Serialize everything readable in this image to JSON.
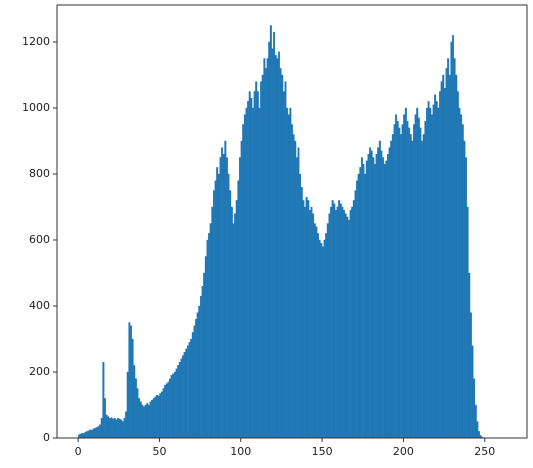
{
  "chart_data": {
    "type": "histogram",
    "color": "#1f77b4",
    "bins": [
      0,
      1,
      2,
      3,
      4,
      5,
      6,
      7,
      8,
      9,
      10,
      11,
      12,
      13,
      14,
      15,
      16,
      17,
      18,
      19,
      20,
      21,
      22,
      23,
      24,
      25,
      26,
      27,
      28,
      29,
      30,
      31,
      32,
      33,
      34,
      35,
      36,
      37,
      38,
      39,
      40,
      41,
      42,
      43,
      44,
      45,
      46,
      47,
      48,
      49,
      50,
      51,
      52,
      53,
      54,
      55,
      56,
      57,
      58,
      59,
      60,
      61,
      62,
      63,
      64,
      65,
      66,
      67,
      68,
      69,
      70,
      71,
      72,
      73,
      74,
      75,
      76,
      77,
      78,
      79,
      80,
      81,
      82,
      83,
      84,
      85,
      86,
      87,
      88,
      89,
      90,
      91,
      92,
      93,
      94,
      95,
      96,
      97,
      98,
      99,
      100,
      101,
      102,
      103,
      104,
      105,
      106,
      107,
      108,
      109,
      110,
      111,
      112,
      113,
      114,
      115,
      116,
      117,
      118,
      119,
      120,
      121,
      122,
      123,
      124,
      125,
      126,
      127,
      128,
      129,
      130,
      131,
      132,
      133,
      134,
      135,
      136,
      137,
      138,
      139,
      140,
      141,
      142,
      143,
      144,
      145,
      146,
      147,
      148,
      149,
      150,
      151,
      152,
      153,
      154,
      155,
      156,
      157,
      158,
      159,
      160,
      161,
      162,
      163,
      164,
      165,
      166,
      167,
      168,
      169,
      170,
      171,
      172,
      173,
      174,
      175,
      176,
      177,
      178,
      179,
      180,
      181,
      182,
      183,
      184,
      185,
      186,
      187,
      188,
      189,
      190,
      191,
      192,
      193,
      194,
      195,
      196,
      197,
      198,
      199,
      200,
      201,
      202,
      203,
      204,
      205,
      206,
      207,
      208,
      209,
      210,
      211,
      212,
      213,
      214,
      215,
      216,
      217,
      218,
      219,
      220,
      221,
      222,
      223,
      224,
      225,
      226,
      227,
      228,
      229,
      230,
      231,
      232,
      233,
      234,
      235,
      236,
      237,
      238,
      239,
      240,
      241,
      242,
      243,
      244,
      245,
      246,
      247,
      248,
      249,
      250,
      251,
      252,
      253,
      254,
      255,
      256
    ],
    "values": [
      10,
      12,
      15,
      14,
      18,
      20,
      22,
      25,
      24,
      28,
      30,
      32,
      35,
      40,
      60,
      230,
      120,
      70,
      65,
      60,
      62,
      58,
      60,
      55,
      60,
      58,
      55,
      50,
      60,
      80,
      200,
      350,
      340,
      300,
      220,
      180,
      150,
      120,
      110,
      100,
      95,
      100,
      105,
      100,
      110,
      115,
      120,
      125,
      130,
      128,
      135,
      140,
      150,
      160,
      165,
      170,
      180,
      190,
      195,
      200,
      210,
      220,
      230,
      240,
      250,
      260,
      270,
      280,
      290,
      300,
      320,
      340,
      360,
      380,
      400,
      430,
      460,
      500,
      550,
      600,
      620,
      650,
      700,
      750,
      780,
      820,
      800,
      850,
      880,
      860,
      900,
      850,
      800,
      750,
      700,
      650,
      680,
      720,
      780,
      850,
      900,
      950,
      980,
      1000,
      1020,
      1050,
      1030,
      1000,
      1050,
      1080,
      1050,
      1000,
      1080,
      1100,
      1150,
      1120,
      1150,
      1200,
      1250,
      1180,
      1230,
      1160,
      1150,
      1170,
      1120,
      1100,
      1050,
      1080,
      1000,
      980,
      1000,
      950,
      920,
      900,
      850,
      880,
      800,
      760,
      720,
      700,
      730,
      720,
      690,
      700,
      680,
      650,
      640,
      620,
      600,
      590,
      580,
      600,
      620,
      650,
      680,
      700,
      720,
      710,
      690,
      700,
      720,
      710,
      700,
      690,
      680,
      670,
      660,
      690,
      700,
      720,
      750,
      780,
      800,
      820,
      850,
      830,
      800,
      840,
      860,
      880,
      870,
      850,
      830,
      860,
      880,
      900,
      870,
      850,
      830,
      840,
      860,
      880,
      900,
      920,
      950,
      980,
      960,
      940,
      920,
      950,
      980,
      1000,
      960,
      940,
      920,
      900,
      950,
      980,
      1000,
      970,
      940,
      900,
      920,
      960,
      1000,
      1020,
      1000,
      980,
      1010,
      1040,
      1020,
      1000,
      1050,
      1080,
      1100,
      1060,
      1120,
      1150,
      1100,
      1200,
      1220,
      1150,
      1100,
      1050,
      1000,
      980,
      950,
      900,
      850,
      700,
      500,
      380,
      280,
      180,
      100,
      50,
      20,
      8,
      3,
      1,
      0,
      0,
      0,
      0,
      0,
      0
    ],
    "xlim": [
      -13,
      276
    ],
    "ylim": [
      0,
      1312
    ],
    "xticks": [
      0,
      50,
      100,
      150,
      200,
      250
    ],
    "yticks": [
      0,
      200,
      400,
      600,
      800,
      1000,
      1200
    ]
  }
}
